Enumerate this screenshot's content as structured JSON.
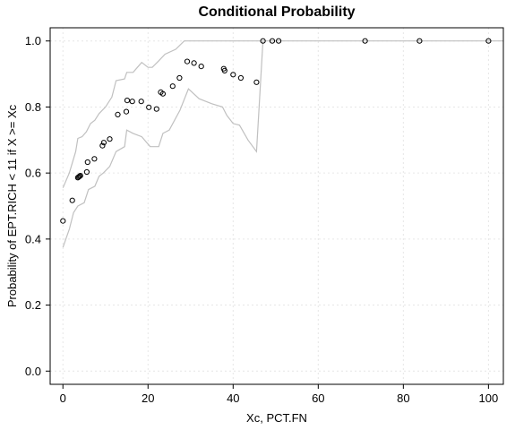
{
  "chart_data": {
    "type": "scatter",
    "title": "Conditional Probability",
    "xlabel": "Xc, PCT.FN",
    "ylabel": "Probability of EPT.RICH < 11 if X >= Xc",
    "xlim": [
      -3,
      103.5
    ],
    "ylim": [
      -0.04,
      1.04
    ],
    "xticks": [
      "0",
      "20",
      "40",
      "60",
      "80",
      "100"
    ],
    "yticks": [
      "0.0",
      "0.2",
      "0.4",
      "0.6",
      "0.8",
      "1.0"
    ],
    "grid": true,
    "points": [
      {
        "x": 0.0,
        "y": 0.455
      },
      {
        "x": 2.2,
        "y": 0.517
      },
      {
        "x": 3.5,
        "y": 0.586
      },
      {
        "x": 3.7,
        "y": 0.588
      },
      {
        "x": 3.9,
        "y": 0.59
      },
      {
        "x": 4.1,
        "y": 0.592
      },
      {
        "x": 5.6,
        "y": 0.603
      },
      {
        "x": 5.8,
        "y": 0.633
      },
      {
        "x": 7.4,
        "y": 0.643
      },
      {
        "x": 9.3,
        "y": 0.683
      },
      {
        "x": 9.6,
        "y": 0.692
      },
      {
        "x": 11.0,
        "y": 0.703
      },
      {
        "x": 12.9,
        "y": 0.777
      },
      {
        "x": 14.9,
        "y": 0.786
      },
      {
        "x": 15.1,
        "y": 0.82
      },
      {
        "x": 16.3,
        "y": 0.817
      },
      {
        "x": 18.4,
        "y": 0.817
      },
      {
        "x": 20.2,
        "y": 0.799
      },
      {
        "x": 22.0,
        "y": 0.794
      },
      {
        "x": 23.0,
        "y": 0.845
      },
      {
        "x": 23.5,
        "y": 0.84
      },
      {
        "x": 25.8,
        "y": 0.863
      },
      {
        "x": 27.4,
        "y": 0.888
      },
      {
        "x": 29.2,
        "y": 0.938
      },
      {
        "x": 30.8,
        "y": 0.933
      },
      {
        "x": 32.5,
        "y": 0.923
      },
      {
        "x": 37.8,
        "y": 0.916
      },
      {
        "x": 38.0,
        "y": 0.91
      },
      {
        "x": 40.0,
        "y": 0.898
      },
      {
        "x": 41.8,
        "y": 0.888
      },
      {
        "x": 45.5,
        "y": 0.875
      },
      {
        "x": 47.0,
        "y": 1.0
      },
      {
        "x": 49.2,
        "y": 1.0
      },
      {
        "x": 50.7,
        "y": 1.0
      },
      {
        "x": 71.0,
        "y": 1.0
      },
      {
        "x": 83.8,
        "y": 1.0
      },
      {
        "x": 100.0,
        "y": 1.0
      }
    ],
    "upper_bound": [
      [
        0.0,
        0.555
      ],
      [
        1.5,
        0.6
      ],
      [
        3.0,
        0.665
      ],
      [
        3.5,
        0.705
      ],
      [
        4.5,
        0.71
      ],
      [
        5.5,
        0.725
      ],
      [
        6.5,
        0.75
      ],
      [
        7.5,
        0.76
      ],
      [
        8.5,
        0.78
      ],
      [
        10.0,
        0.8
      ],
      [
        11.5,
        0.83
      ],
      [
        12.5,
        0.88
      ],
      [
        14.5,
        0.885
      ],
      [
        15.0,
        0.905
      ],
      [
        16.5,
        0.905
      ],
      [
        17.5,
        0.92
      ],
      [
        18.5,
        0.935
      ],
      [
        20.0,
        0.92
      ],
      [
        21.0,
        0.92
      ],
      [
        22.5,
        0.94
      ],
      [
        24.0,
        0.96
      ],
      [
        26.5,
        0.975
      ],
      [
        28.5,
        1.0
      ],
      [
        47.0,
        1.0
      ],
      [
        103.5,
        1.0
      ]
    ],
    "lower_bound": [
      [
        0.0,
        0.375
      ],
      [
        1.5,
        0.43
      ],
      [
        2.5,
        0.48
      ],
      [
        3.5,
        0.5
      ],
      [
        5.0,
        0.51
      ],
      [
        6.0,
        0.55
      ],
      [
        7.5,
        0.56
      ],
      [
        8.5,
        0.59
      ],
      [
        9.5,
        0.6
      ],
      [
        11.0,
        0.62
      ],
      [
        12.5,
        0.665
      ],
      [
        14.5,
        0.68
      ],
      [
        15.0,
        0.73
      ],
      [
        16.5,
        0.72
      ],
      [
        18.5,
        0.71
      ],
      [
        20.5,
        0.68
      ],
      [
        22.5,
        0.68
      ],
      [
        23.5,
        0.72
      ],
      [
        25.0,
        0.73
      ],
      [
        27.5,
        0.79
      ],
      [
        29.5,
        0.855
      ],
      [
        32.0,
        0.825
      ],
      [
        35.0,
        0.81
      ],
      [
        37.5,
        0.8
      ],
      [
        38.5,
        0.775
      ],
      [
        40.0,
        0.75
      ],
      [
        41.5,
        0.745
      ],
      [
        43.5,
        0.7
      ],
      [
        45.5,
        0.665
      ],
      [
        47.0,
        1.0
      ]
    ],
    "colors": {
      "points": "#000000",
      "bounds": "#c0c0c0",
      "grid": "#e6e6e6",
      "frame": "#000000"
    }
  }
}
